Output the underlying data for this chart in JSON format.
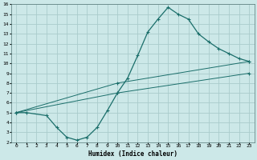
{
  "title": "",
  "xlabel": "Humidex (Indice chaleur)",
  "ylabel": "",
  "bg_color": "#cce8e8",
  "grid_color": "#aacccc",
  "line_color": "#1a6e6a",
  "xlim": [
    -0.5,
    23.5
  ],
  "ylim": [
    2,
    16
  ],
  "xticks": [
    0,
    1,
    2,
    3,
    4,
    5,
    6,
    7,
    8,
    9,
    10,
    11,
    12,
    13,
    14,
    15,
    16,
    17,
    18,
    19,
    20,
    21,
    22,
    23
  ],
  "yticks": [
    2,
    3,
    4,
    5,
    6,
    7,
    8,
    9,
    10,
    11,
    12,
    13,
    14,
    15,
    16
  ],
  "curve1_x": [
    0,
    1,
    3,
    4,
    5,
    6,
    7,
    8,
    9,
    10,
    11,
    12,
    13,
    14,
    15,
    16,
    17,
    18,
    19,
    20,
    21,
    22,
    23
  ],
  "curve1_y": [
    5.0,
    5.0,
    4.7,
    3.5,
    2.5,
    2.2,
    2.5,
    3.5,
    5.2,
    7.0,
    8.5,
    10.8,
    13.2,
    14.5,
    15.7,
    15.0,
    14.5,
    13.0,
    12.2,
    11.5,
    11.0,
    10.5,
    10.2
  ],
  "curve2_x": [
    0,
    10,
    23
  ],
  "curve2_y": [
    5.0,
    8.0,
    10.2
  ],
  "curve3_x": [
    0,
    10,
    23
  ],
  "curve3_y": [
    5.0,
    7.0,
    9.0
  ]
}
